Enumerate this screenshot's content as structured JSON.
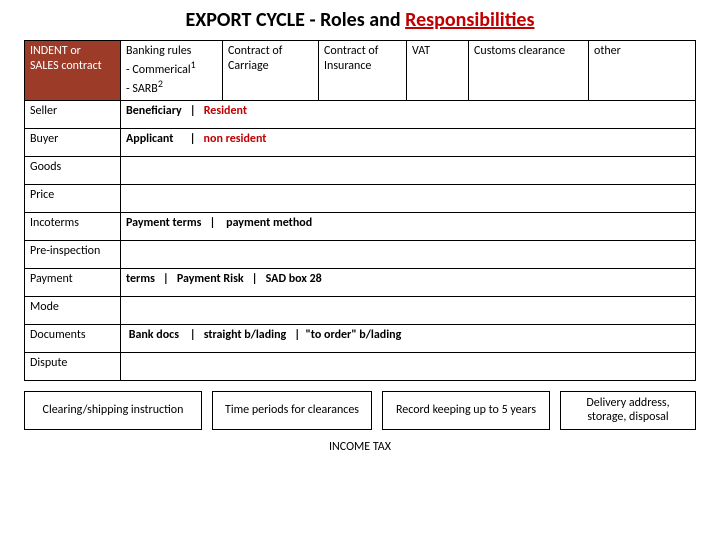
{
  "title_pre": "EXPORT CYCLE - Roles and ",
  "title_hl": "Responsibilities",
  "header": {
    "c1_l1": "INDENT or",
    "c1_l2": "SALES contract",
    "c2_l1": "Banking rules",
    "c2_l2_pre": "- Commerical",
    "c2_l2_sup": "1",
    "c2_l3_pre": "- SARB",
    "c2_l3_sup": "2",
    "c3_l1": "Contract of",
    "c3_l2": "Carriage",
    "c4_l1": "Contract of",
    "c4_l2": "Insurance",
    "c5": "VAT",
    "c6": "Customs clearance",
    "c7": "other"
  },
  "rows": {
    "seller": {
      "label": "Seller",
      "left": "Beneficiary",
      "sep": "|",
      "right": "Resident"
    },
    "buyer": {
      "label": "Buyer",
      "left": "Applicant",
      "sep": "|",
      "right": "non resident"
    },
    "goods": {
      "label": "Goods"
    },
    "price": {
      "label": "Price"
    },
    "incoterms": {
      "label": "Incoterms",
      "left": "Payment terms",
      "sep": "|",
      "right": "payment method"
    },
    "preinsp": {
      "label": "Pre-inspection"
    },
    "payment": {
      "label": "Payment",
      "p1": "terms",
      "sep1": "|",
      "p2": "Payment Risk",
      "sep2": "|",
      "p3": "SAD box 28"
    },
    "mode": {
      "label": "Mode"
    },
    "documents": {
      "label": "Documents",
      "p1": "Bank docs",
      "sep1": "|",
      "p2": "straight b/lading",
      "sep2": "|",
      "p3": "\"to order\" b/lading"
    },
    "dispute": {
      "label": "Dispute"
    }
  },
  "bottom": {
    "b1": "Clearing/shipping instruction",
    "b2": "Time periods for clearances",
    "b3": "Record keeping up to 5 years",
    "b4": "Delivery address, storage, disposal"
  },
  "income": "INCOME TAX",
  "style": {
    "header_bg": "#9c3b27",
    "header_fg": "#ffffff",
    "accent": "#c00000",
    "border": "#000000",
    "bottom_widths": [
      180,
      160,
      170,
      160
    ]
  }
}
